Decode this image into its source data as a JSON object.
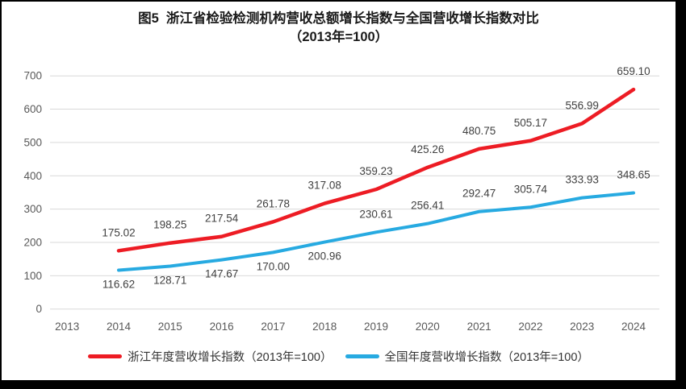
{
  "title": {
    "line1": "图5  浙江省检验检测机构营收总额增长指数与全国营收增长指数对比",
    "line2": "（2013年=100）"
  },
  "colors": {
    "zhejiang_line": "#ed1c24",
    "national_line": "#27aae1",
    "gridline": "#d9d9d9",
    "tick_text": "#595959",
    "data_label_text": "#404040",
    "frame_border": "#000000"
  },
  "chart_data": {
    "type": "line",
    "title": "图5 浙江省检验检测机构营收总额增长指数与全国营收增长指数对比（2013年=100）",
    "x_tick_labels": [
      "2013",
      "2014",
      "2015",
      "2016",
      "2017",
      "2018",
      "2019",
      "2020",
      "2021",
      "2022",
      "2023",
      "2024"
    ],
    "y_tick_labels": [
      "0",
      "100",
      "200",
      "300",
      "400",
      "500",
      "600",
      "700"
    ],
    "ylim": [
      0,
      700
    ],
    "ytick_step": 100,
    "grid": true,
    "legend_position": "bottom",
    "xlabel": "",
    "ylabel": "",
    "series": [
      {
        "name": "浙江年度营收增长指数（2013年=100）",
        "color": "#ed1c24",
        "values": [
          null,
          175.02,
          198.25,
          217.54,
          261.78,
          317.08,
          359.23,
          425.26,
          480.75,
          505.17,
          556.99,
          659.1
        ],
        "label_positions": "above"
      },
      {
        "name": "全国年度营收增长指数（2013年=100）",
        "color": "#27aae1",
        "values": [
          null,
          116.62,
          128.71,
          147.67,
          170.0,
          200.96,
          230.61,
          256.41,
          292.47,
          305.74,
          333.93,
          348.65
        ],
        "label_positions": [
          "below",
          "below",
          "below",
          "below",
          "below",
          "below",
          "above",
          "above",
          "above",
          "above",
          "above",
          "above"
        ]
      }
    ]
  }
}
